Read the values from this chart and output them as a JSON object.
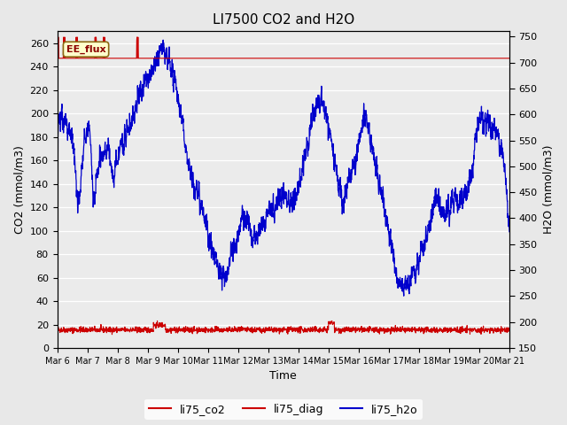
{
  "title": "LI7500 CO2 and H2O",
  "xlabel": "Time",
  "ylabel_left": "CO2 (mmol/m3)",
  "ylabel_right": "H2O (mmol/m3)",
  "ylim_left": [
    0,
    270
  ],
  "ylim_right": [
    150,
    760
  ],
  "yticks_left": [
    0,
    20,
    40,
    60,
    80,
    100,
    120,
    140,
    160,
    180,
    200,
    220,
    240,
    260
  ],
  "yticks_right": [
    150,
    200,
    250,
    300,
    350,
    400,
    450,
    500,
    550,
    600,
    650,
    700,
    750
  ],
  "n_days": 15,
  "xtick_labels": [
    "Mar 6",
    "Mar 7",
    "Mar 8",
    "Mar 9",
    "Mar 10",
    "Mar 11",
    "Mar 12",
    "Mar 13",
    "Mar 14",
    "Mar 15",
    "Mar 16",
    "Mar 17",
    "Mar 18",
    "Mar 19",
    "Mar 20",
    "Mar 21"
  ],
  "legend_labels": [
    "li75_co2",
    "li75_diag",
    "li75_h2o"
  ],
  "legend_colors": [
    "#cc0000",
    "#cc0000",
    "#0000cc"
  ],
  "annotation_text": "EE_flux",
  "co2_color": "#cc0000",
  "diag_color": "#cc0000",
  "h2o_color": "#0000cc",
  "bg_color": "#e8e8e8",
  "plot_bg_color": "#ebebeb",
  "title_fontsize": 11,
  "axis_fontsize": 9,
  "tick_fontsize": 8,
  "h2o_min": 150,
  "h2o_max": 760
}
